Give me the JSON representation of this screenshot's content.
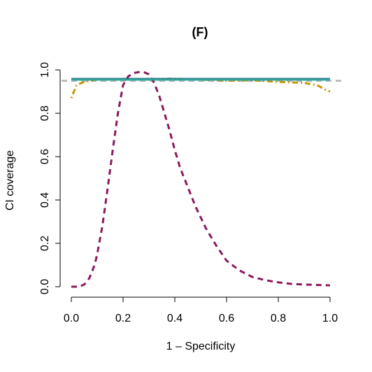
{
  "chart_data": {
    "type": "line",
    "title": "(F)",
    "xlabel": "1 – Specificity",
    "ylabel": "CI coverage",
    "xlim": [
      0,
      1
    ],
    "ylim": [
      0,
      1
    ],
    "xticks": [
      "0.0",
      "0.2",
      "0.4",
      "0.6",
      "0.8",
      "1.0"
    ],
    "yticks": [
      "0.0",
      "0.2",
      "0.4",
      "0.6",
      "0.8",
      "1.0"
    ],
    "grid": false,
    "reference_line": {
      "y": 0.95,
      "color": "#bdbdbd",
      "style": "dashed"
    },
    "series": [
      {
        "color": "#8b1a5b",
        "style": "dashed",
        "x": [
          0.0,
          0.03,
          0.05,
          0.07,
          0.09,
          0.1,
          0.12,
          0.14,
          0.16,
          0.18,
          0.2,
          0.22,
          0.24,
          0.26,
          0.28,
          0.3,
          0.32,
          0.34,
          0.36,
          0.38,
          0.4,
          0.42,
          0.45,
          0.48,
          0.52,
          0.56,
          0.6,
          0.65,
          0.7,
          0.75,
          0.8,
          0.85,
          0.9,
          0.95,
          1.0
        ],
        "y": [
          0.0,
          0.0,
          0.01,
          0.04,
          0.1,
          0.15,
          0.28,
          0.45,
          0.63,
          0.8,
          0.93,
          0.97,
          0.985,
          0.99,
          0.99,
          0.98,
          0.94,
          0.88,
          0.8,
          0.72,
          0.63,
          0.55,
          0.46,
          0.37,
          0.27,
          0.19,
          0.12,
          0.075,
          0.045,
          0.03,
          0.02,
          0.013,
          0.01,
          0.008,
          0.006
        ]
      },
      {
        "color": "#c8960a",
        "style": "dotdash",
        "x": [
          0.0,
          0.02,
          0.05,
          0.1,
          0.2,
          0.3,
          0.4,
          0.5,
          0.6,
          0.7,
          0.8,
          0.9,
          0.95,
          0.98,
          1.0
        ],
        "y": [
          0.87,
          0.93,
          0.945,
          0.955,
          0.955,
          0.957,
          0.96,
          0.955,
          0.95,
          0.952,
          0.945,
          0.94,
          0.93,
          0.91,
          0.9
        ]
      },
      {
        "color": "#1f5a8a",
        "style": "solid",
        "x": [
          0.0,
          1.0
        ],
        "y": [
          0.958,
          0.958
        ]
      },
      {
        "color": "#2fa59a",
        "style": "solid",
        "x": [
          0.0,
          1.0
        ],
        "y": [
          0.955,
          0.955
        ]
      }
    ]
  }
}
